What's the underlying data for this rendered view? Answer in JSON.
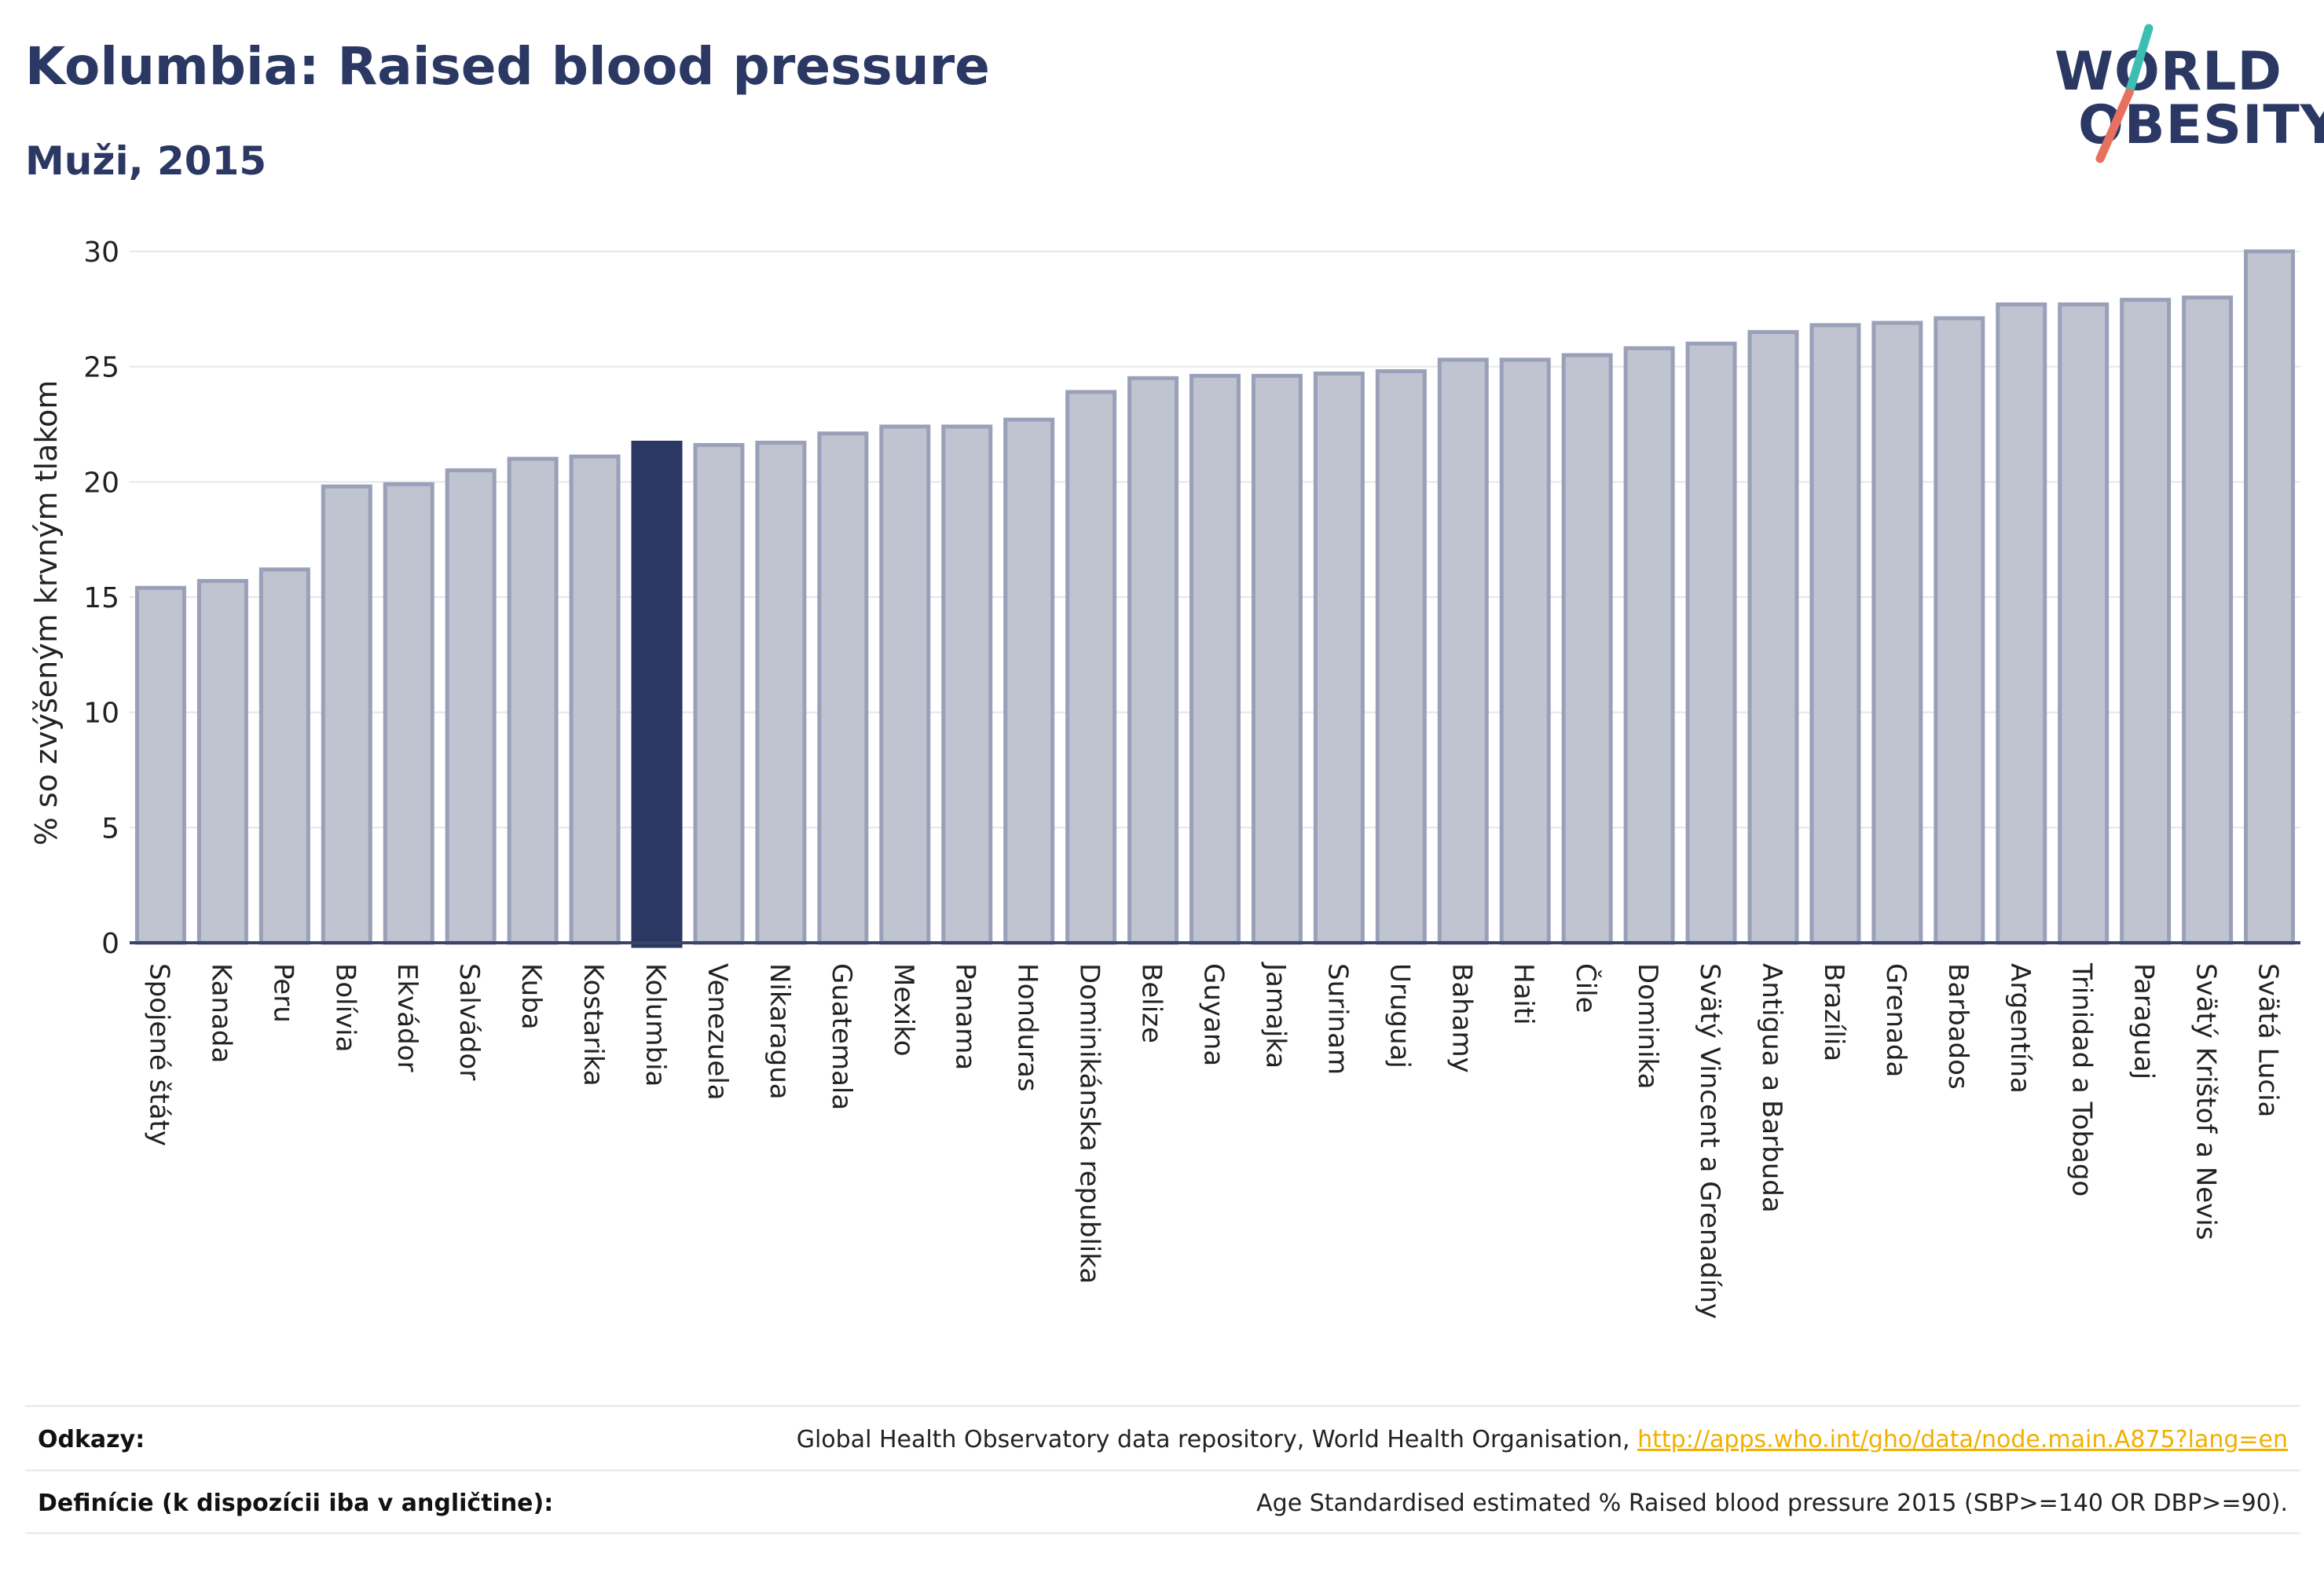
{
  "header": {
    "title": "Kolumbia: Raised blood pressure",
    "subtitle": "Muži, 2015"
  },
  "logo": {
    "line1": "WORLD",
    "line2": "OBESITY",
    "slash_colors": [
      "#3cbfb2",
      "#e8705f"
    ]
  },
  "colors": {
    "bar_fill": "#c0c3d0",
    "bar_stroke": "#9aa0b8",
    "highlight_fill": "#2b3864",
    "text_dark": "#2b3864",
    "link": "#f0b000"
  },
  "chart_data": {
    "type": "bar",
    "ylabel": "% so zvýšeným krvným tlakom",
    "xlabel": "",
    "ylim": [
      0,
      30
    ],
    "yticks": [
      0,
      5,
      10,
      15,
      20,
      25,
      30
    ],
    "grid": true,
    "highlight": "Kolumbia",
    "categories": [
      "Spojené štáty",
      "Kanada",
      "Peru",
      "Bolívia",
      "Ekvádor",
      "Salvádor",
      "Kuba",
      "Kostarika",
      "Kolumbia",
      "Venezuela",
      "Nikaragua",
      "Guatemala",
      "Mexiko",
      "Panama",
      "Honduras",
      "Dominikánska republika",
      "Belize",
      "Guyana",
      "Jamajka",
      "Surinam",
      "Uruguaj",
      "Bahamy",
      "Haiti",
      "Čile",
      "Dominika",
      "Svätý Vincent a Grenadíny",
      "Antigua a Barbuda",
      "Brazília",
      "Grenada",
      "Barbados",
      "Argentína",
      "Trinidad a Tobago",
      "Paraguaj",
      "Svätý Krištof a Nevis",
      "Svätá Lucia"
    ],
    "values": [
      15.4,
      15.7,
      16.2,
      19.8,
      19.9,
      20.5,
      21.0,
      21.1,
      21.7,
      21.6,
      21.7,
      22.1,
      22.4,
      22.4,
      22.7,
      23.9,
      24.5,
      24.6,
      24.6,
      24.7,
      24.8,
      25.3,
      25.3,
      25.5,
      25.8,
      26.0,
      26.5,
      26.8,
      26.9,
      27.1,
      27.7,
      27.7,
      27.9,
      28.0,
      30.0
    ]
  },
  "footer": {
    "refs_label": "Odkazy:",
    "refs_text": "Global Health Observatory data repository, World Health Organisation,",
    "refs_link": "http://apps.who.int/gho/data/node.main.A875?lang=en",
    "defs_label": "Definície (k dispozícii iba v angličtine):",
    "defs_text": "Age Standardised estimated % Raised blood pressure 2015 (SBP>=140 OR DBP>=90)."
  }
}
